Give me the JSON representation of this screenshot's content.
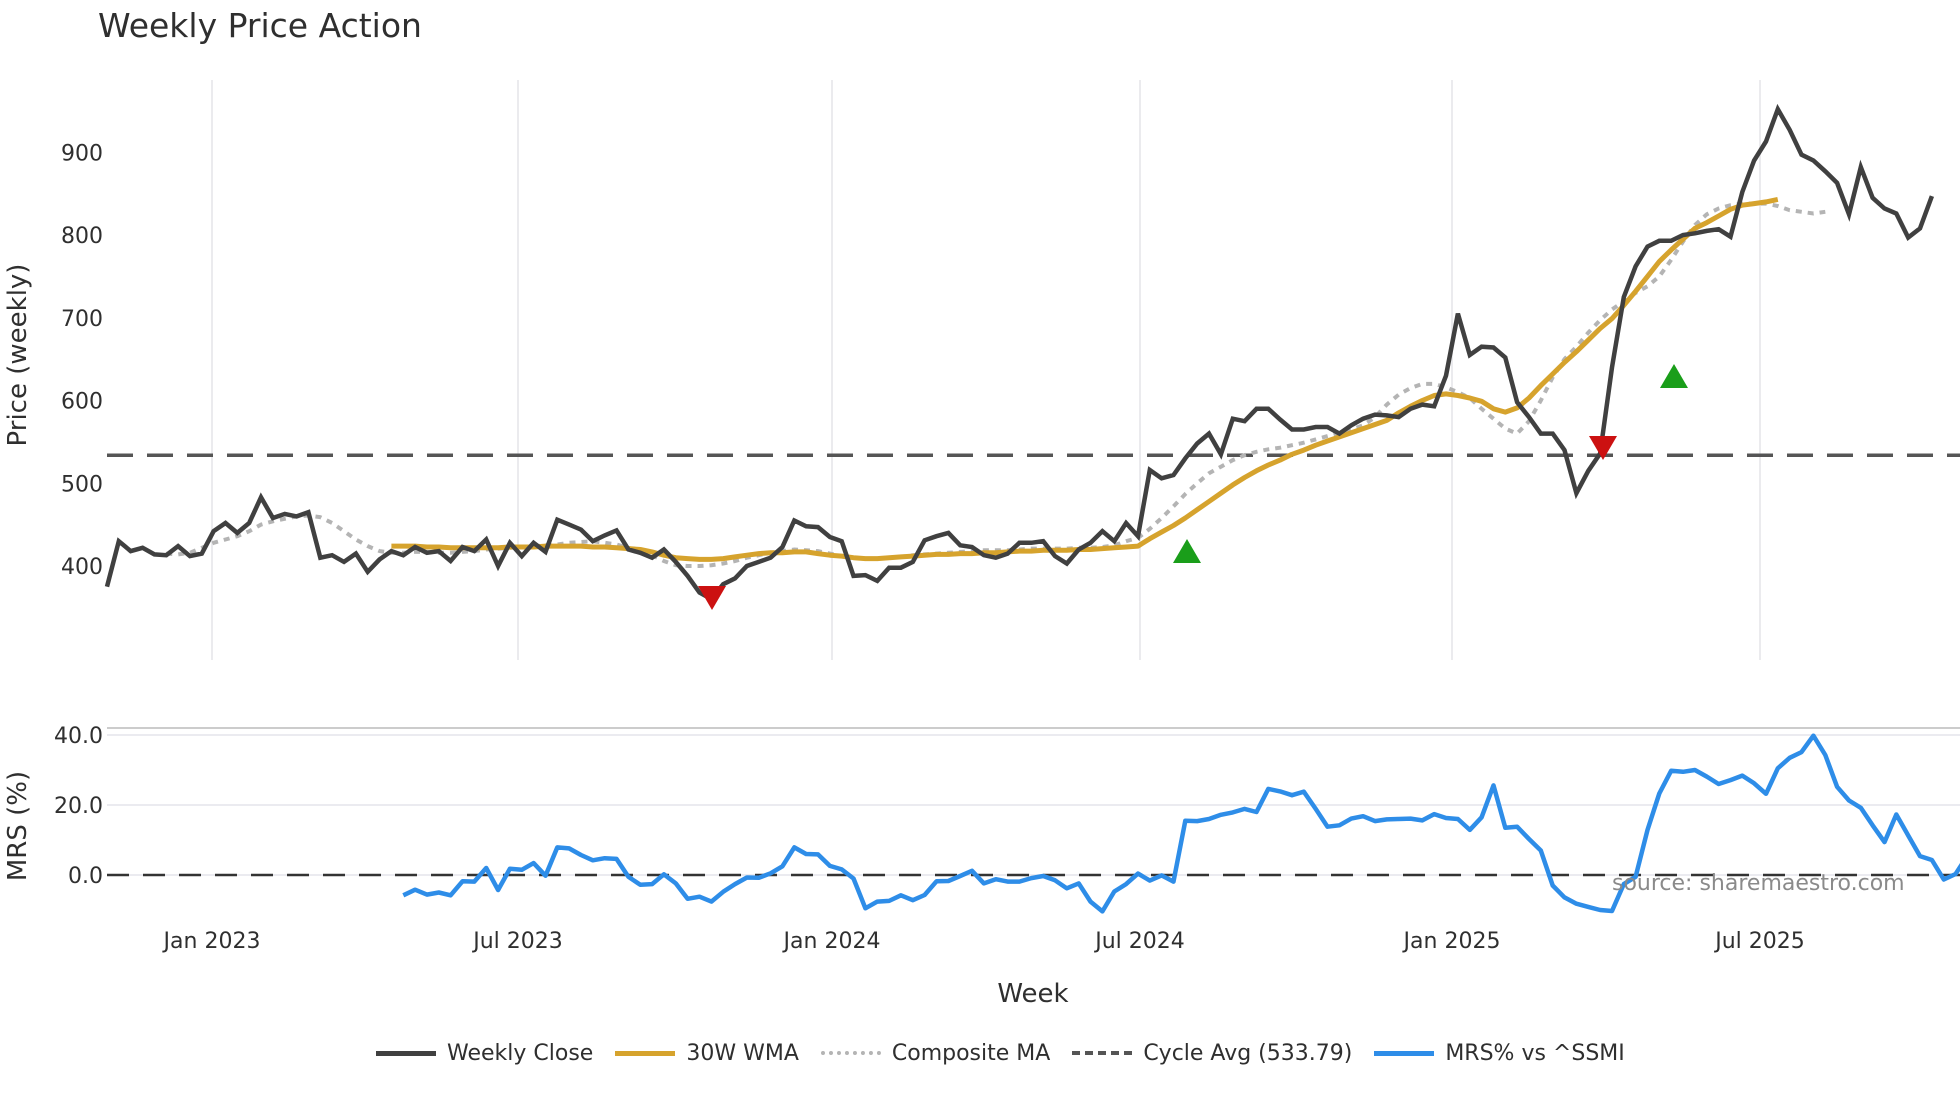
{
  "title": "Weekly Price Action",
  "source_label": "source: sharemaestro.com",
  "legend": [
    {
      "label": "Weekly Close",
      "color": "#404040",
      "style": "solid"
    },
    {
      "label": "30W WMA",
      "color": "#d6a32d",
      "style": "solid"
    },
    {
      "label": "Composite MA",
      "color": "#b4b4b4",
      "style": "dotted"
    },
    {
      "label": "Cycle Avg (533.79)",
      "color": "#555555",
      "style": "dashed"
    },
    {
      "label": "MRS% vs ^SSMI",
      "color": "#2e8de8",
      "style": "solid"
    }
  ],
  "chart_data": [
    {
      "type": "line",
      "title": "Weekly Price Action",
      "xlabel": "Week",
      "ylabel": "Price (weekly)",
      "ylim": [
        330,
        985
      ],
      "y_ticks": [
        400,
        500,
        600,
        700,
        800,
        900
      ],
      "x_ticks": [
        "Jan 2023",
        "Jul 2023",
        "Jan 2024",
        "Jul 2024",
        "Jan 2025",
        "Jul 2025"
      ],
      "grid": "vertical",
      "legend_position": "bottom",
      "x_start_index_note": "weekly points, first at ~Nov 2022",
      "series": [
        {
          "name": "Weekly Close",
          "color": "#404040",
          "start": 0,
          "values": [
            375,
            430,
            418,
            422,
            414,
            413,
            424,
            412,
            415,
            442,
            452,
            440,
            452,
            483,
            458,
            463,
            460,
            465,
            410,
            413,
            405,
            415,
            393,
            408,
            418,
            413,
            423,
            416,
            418,
            406,
            423,
            418,
            432,
            400,
            428,
            412,
            428,
            417,
            456,
            450,
            444,
            430,
            437,
            443,
            420,
            416,
            410,
            420,
            405,
            388,
            368,
            360,
            378,
            385,
            400,
            405,
            410,
            423,
            455,
            448,
            447,
            435,
            430,
            388,
            389,
            382,
            398,
            398,
            405,
            431,
            436,
            440,
            425,
            423,
            413,
            410,
            415,
            428,
            428,
            430,
            412,
            403,
            420,
            428,
            442,
            430,
            452,
            436,
            516,
            506,
            510,
            530,
            548,
            560,
            535,
            578,
            575,
            590,
            590,
            577,
            565,
            565,
            568,
            568,
            560,
            570,
            578,
            583,
            582,
            580,
            590,
            595,
            593,
            630,
            705,
            655,
            665,
            664,
            652,
            598,
            580,
            560,
            560,
            540,
            488,
            515,
            536,
            640,
            725,
            762,
            786,
            793,
            793,
            800,
            802,
            805,
            807,
            798,
            852,
            890,
            913,
            952,
            927,
            897,
            890,
            877,
            863,
            825,
            882,
            845,
            832,
            826,
            797,
            808,
            847
          ]
        },
        {
          "name": "30W WMA",
          "color": "#d6a32d",
          "start": 24,
          "values": [
            424,
            424,
            424,
            423,
            423,
            422,
            422,
            422,
            422,
            422,
            423,
            423,
            423,
            424,
            424,
            424,
            424,
            423,
            423,
            422,
            421,
            420,
            417,
            413,
            410,
            409,
            408,
            408,
            409,
            411,
            413,
            415,
            416,
            416,
            417,
            417,
            415,
            413,
            412,
            410,
            409,
            409,
            410,
            411,
            412,
            413,
            414,
            414,
            415,
            415,
            416,
            416,
            417,
            418,
            418,
            419,
            419,
            419,
            420,
            420,
            421,
            422,
            423,
            424,
            433,
            441,
            449,
            458,
            468,
            478,
            488,
            498,
            507,
            515,
            522,
            528,
            535,
            540,
            546,
            551,
            556,
            561,
            566,
            571,
            576,
            585,
            593,
            600,
            606,
            608,
            606,
            603,
            599,
            590,
            586,
            591,
            603,
            618,
            632,
            646,
            659,
            673,
            687,
            699,
            715,
            732,
            750,
            768,
            782,
            795,
            808,
            815,
            823,
            831,
            836,
            838,
            840,
            843
          ]
        },
        {
          "name": "Composite MA",
          "color": "#b4b4b4",
          "start": 5,
          "values": [
            415,
            414,
            416,
            422,
            428,
            432,
            436,
            442,
            450,
            454,
            457,
            460,
            461,
            459,
            452,
            442,
            432,
            424,
            418,
            416,
            416,
            417,
            417,
            416,
            416,
            417,
            418,
            420,
            421,
            422,
            423,
            424,
            425,
            426,
            428,
            429,
            430,
            428,
            426,
            422,
            418,
            413,
            406,
            401,
            400,
            400,
            401,
            403,
            406,
            410,
            413,
            416,
            418,
            420,
            419,
            418,
            415,
            412,
            410,
            409,
            409,
            410,
            411,
            413,
            414,
            415,
            416,
            417,
            418,
            419,
            419,
            419,
            420,
            421,
            421,
            421,
            421,
            422,
            422,
            423,
            425,
            430,
            434,
            445,
            458,
            472,
            487,
            500,
            512,
            520,
            528,
            534,
            538,
            541,
            543,
            546,
            549,
            553,
            557,
            561,
            565,
            570,
            580,
            595,
            607,
            615,
            620,
            620,
            616,
            610,
            603,
            590,
            578,
            566,
            560,
            575,
            600,
            628,
            650,
            665,
            682,
            697,
            710,
            720,
            730,
            738,
            750,
            770,
            792,
            812,
            825,
            832,
            836,
            838,
            838,
            838,
            835,
            830,
            828,
            826,
            828
          ]
        },
        {
          "name": "Cycle Avg (533.79)",
          "color": "#555555",
          "value": 533.79
        }
      ],
      "markers": [
        {
          "type": "sell",
          "shape": "triangle-down",
          "color": "#cc1111",
          "x_approx": "Oct 2023",
          "y": 400
        },
        {
          "type": "buy",
          "shape": "triangle-up",
          "color": "#1a9e1a",
          "x_approx": "Aug 2024",
          "y": 452
        },
        {
          "type": "sell",
          "shape": "triangle-down",
          "color": "#cc1111",
          "x_approx": "Mar 2025",
          "y": 570
        },
        {
          "type": "buy",
          "shape": "triangle-up",
          "color": "#1a9e1a",
          "x_approx": "May 2025",
          "y": 650
        }
      ]
    },
    {
      "type": "line",
      "title": "",
      "xlabel": "Week",
      "ylabel": "MRS (%)",
      "ylim": [
        -14,
        42
      ],
      "y_ticks": [
        "0.0",
        "20.0",
        "40.0"
      ],
      "x_ticks": [
        "Jan 2023",
        "Jul 2023",
        "Jan 2024",
        "Jul 2024",
        "Jan 2025",
        "Jul 2025"
      ],
      "series": [
        {
          "name": "MRS% vs ^SSMI",
          "color": "#2e8de8",
          "start": 25,
          "values": [
            -5.8,
            -4.2,
            -5.6,
            -5.0,
            -5.8,
            -1.8,
            -1.9,
            2.0,
            -4.3,
            1.8,
            1.5,
            3.4,
            -0.2,
            7.9,
            7.6,
            5.7,
            4.2,
            4.8,
            4.6,
            -0.5,
            -2.8,
            -2.6,
            0.2,
            -2.4,
            -6.8,
            -6.2,
            -7.6,
            -4.8,
            -2.6,
            -0.7,
            -0.8,
            0.5,
            2.5,
            7.9,
            6.0,
            5.9,
            2.6,
            1.6,
            -1.0,
            -9.5,
            -7.6,
            -7.4,
            -5.8,
            -7.2,
            -5.7,
            -1.8,
            -1.7,
            -0.3,
            1.2,
            -2.4,
            -1.2,
            -1.9,
            -1.9,
            -0.9,
            -0.3,
            -1.5,
            -3.8,
            -2.4,
            -7.6,
            -10.4,
            -4.7,
            -2.6,
            0.4,
            -1.6,
            -0.1,
            -1.9,
            15.5,
            15.4,
            16.0,
            17.2,
            17.9,
            18.9,
            18.0,
            24.6,
            23.9,
            22.8,
            23.8,
            18.9,
            13.8,
            14.2,
            16.1,
            16.8,
            15.4,
            15.9,
            16.0,
            16.1,
            15.6,
            17.4,
            16.3,
            16.0,
            12.9,
            16.5,
            25.6,
            13.5,
            13.8,
            10.3,
            7.0,
            -3.0,
            -6.4,
            -8.2,
            -9.1,
            -10.0,
            -10.3,
            -2.6,
            -0.5,
            12.9,
            23.3,
            29.8,
            29.5,
            30.0,
            28.1,
            26.0,
            27.1,
            28.4,
            26.2,
            23.2,
            30.5,
            33.5,
            35.1,
            39.8,
            34.3,
            25.2,
            21.3,
            19.2,
            14.2,
            9.4,
            17.3,
            11.3,
            5.4,
            4.3,
            -1.3,
            0.3,
            5.6
          ]
        },
        {
          "name": "zero-line",
          "color": "#333333",
          "value": 0
        }
      ]
    }
  ],
  "axes": {
    "price": {
      "ylabel": "Price (weekly)",
      "ticks": [
        "900",
        "800",
        "700",
        "600",
        "500",
        "400"
      ]
    },
    "mrs": {
      "ylabel": "MRS (%)",
      "ticks": [
        "40.0",
        "20.0",
        "0.0"
      ]
    },
    "x": {
      "label": "Week",
      "ticks": [
        "Jan 2023",
        "Jul 2023",
        "Jan 2024",
        "Jul 2024",
        "Jan 2025",
        "Jul 2025"
      ]
    }
  }
}
